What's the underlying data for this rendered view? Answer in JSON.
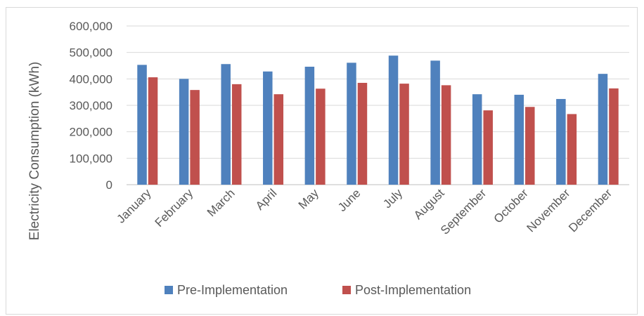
{
  "chart_data": {
    "type": "bar",
    "title": "",
    "xlabel": "",
    "ylabel": "Electricity Consumption (kWh)",
    "ylim": [
      0,
      600000
    ],
    "yticks": [
      0,
      100000,
      200000,
      300000,
      400000,
      500000,
      600000
    ],
    "ytick_labels": [
      "0",
      "100,000",
      "200,000",
      "300,000",
      "400,000",
      "500,000",
      "600,000"
    ],
    "grid": true,
    "legend_position": "bottom",
    "categories": [
      "January",
      "February",
      "March",
      "April",
      "May",
      "June",
      "July",
      "August",
      "September",
      "October",
      "November",
      "December"
    ],
    "series": [
      {
        "name": "Pre-Implementation",
        "color": "#4f81bd",
        "values": [
          453000,
          400000,
          456000,
          428000,
          446000,
          461000,
          488000,
          469000,
          342000,
          340000,
          324000,
          419000
        ]
      },
      {
        "name": "Post-Implementation",
        "color": "#c0504d",
        "values": [
          406000,
          358000,
          380000,
          342000,
          363000,
          385000,
          382000,
          376000,
          281000,
          294000,
          267000,
          364000
        ]
      }
    ]
  }
}
